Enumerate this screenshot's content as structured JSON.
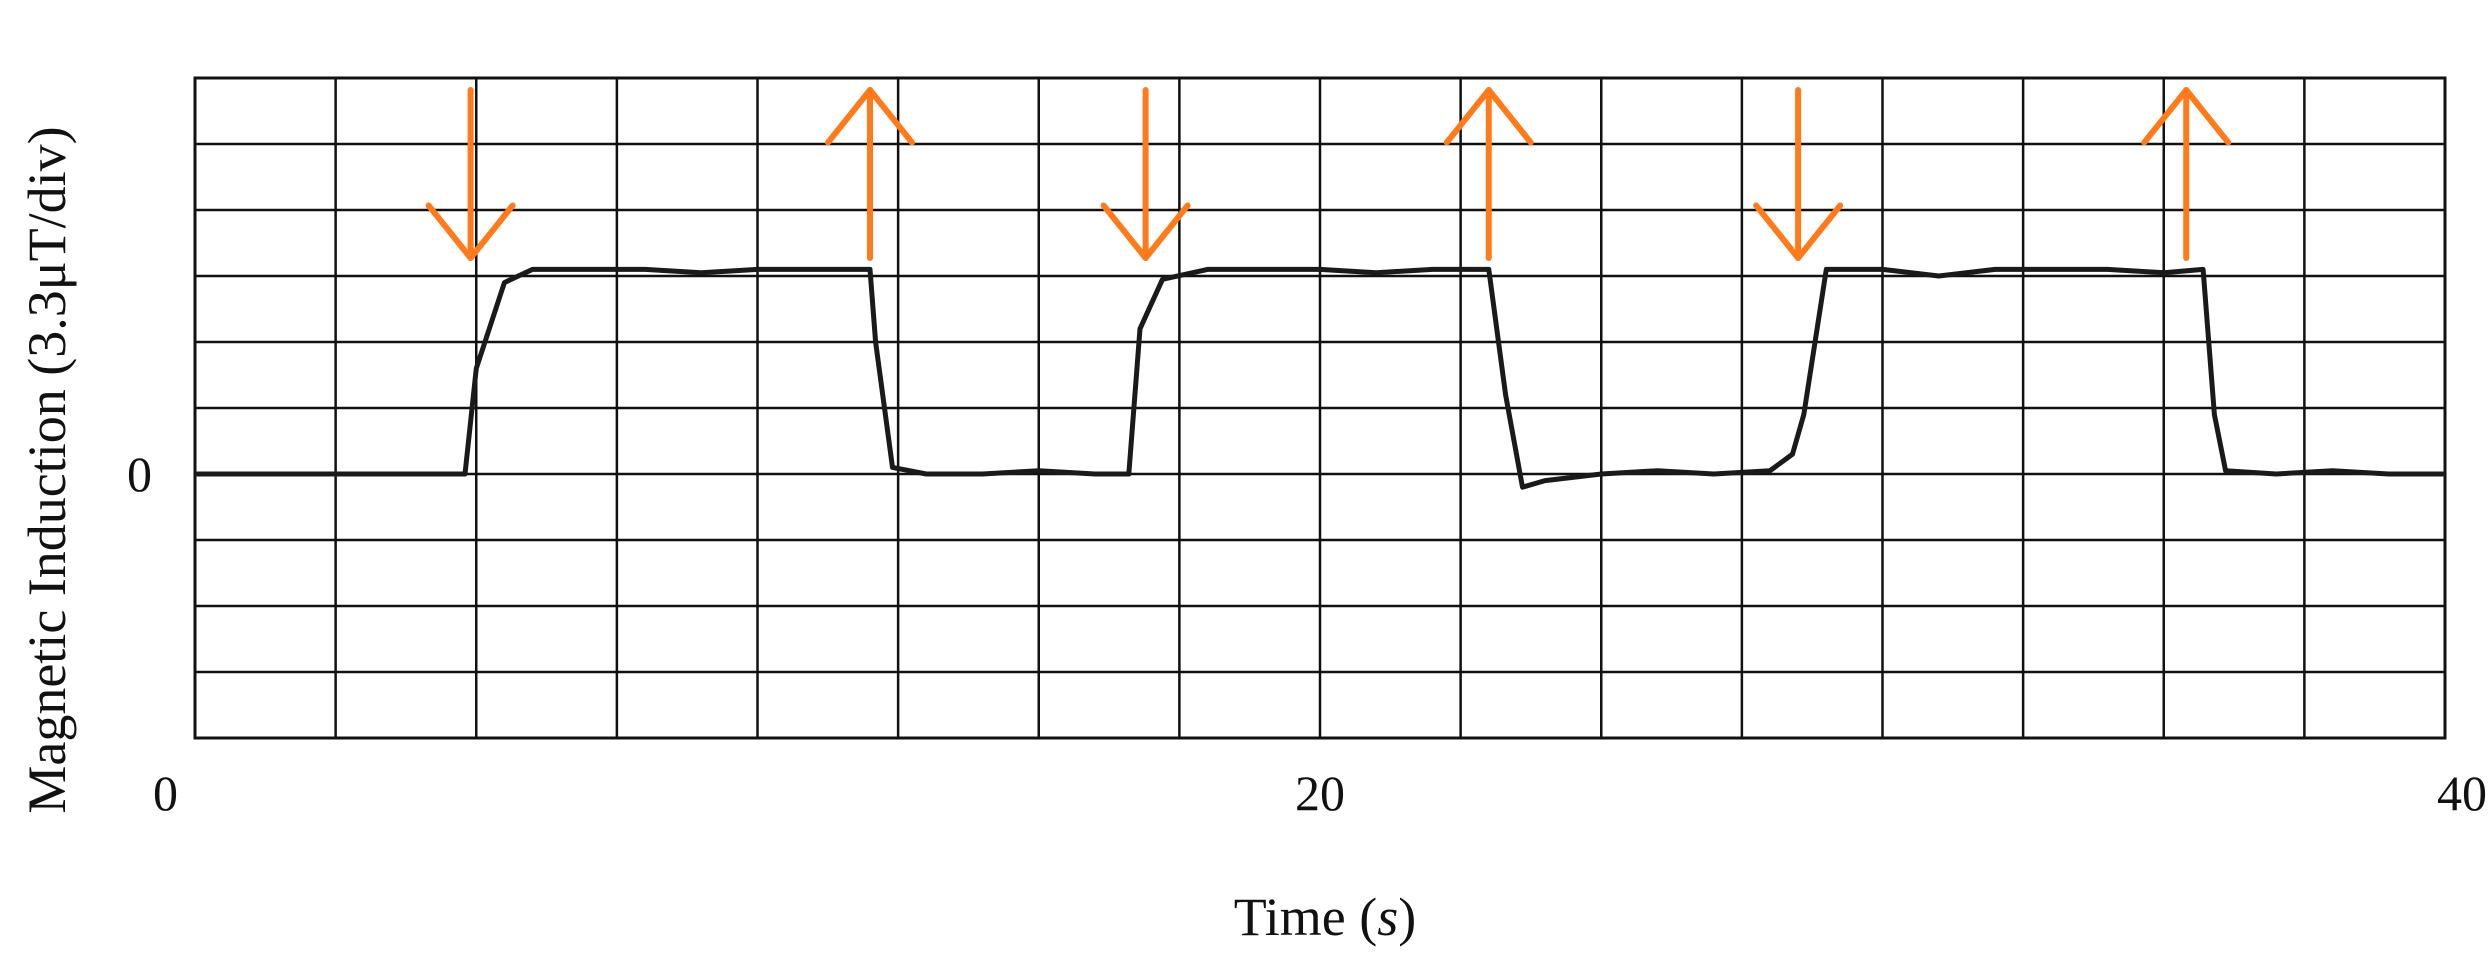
{
  "chart_data": {
    "type": "line",
    "xlabel": "Time (s)",
    "xlabel_parts": {
      "prefix": "Time (",
      "unit": "s",
      "suffix": ")"
    },
    "ylabel": "Magnetic Induction (3.3μT/div)",
    "xlim": [
      0,
      40
    ],
    "x_ticks": [
      0,
      20,
      40
    ],
    "x_tick_labels": [
      "0",
      "20",
      "40"
    ],
    "y_divisions": 10,
    "y_range_div": [
      -4,
      6
    ],
    "y_zero_label": "0",
    "grid": true,
    "line_color": "#1a1a1a",
    "arrow_color": "#ff7a1a",
    "series": [
      {
        "x": [
          0,
          4,
          4.8,
          5.0,
          5.5,
          6,
          7,
          8,
          9,
          10,
          11,
          12,
          12.1,
          12.4,
          13,
          14,
          15,
          16,
          16.6,
          16.8,
          17.2,
          18,
          19,
          20,
          21,
          22,
          23,
          23.3,
          23.6,
          24,
          25,
          26,
          27,
          28,
          28.4,
          28.6,
          29,
          30,
          31,
          32,
          33,
          34,
          35,
          35.7,
          35.9,
          36.1,
          37,
          38,
          39,
          40
        ],
        "y": [
          0,
          0,
          0,
          1.6,
          2.9,
          3.1,
          3.1,
          3.1,
          3.05,
          3.1,
          3.1,
          3.1,
          2.0,
          0.1,
          0,
          0,
          0.05,
          0,
          0,
          2.2,
          2.95,
          3.1,
          3.1,
          3.1,
          3.05,
          3.1,
          3.1,
          1.2,
          -0.2,
          -0.1,
          0,
          0.05,
          0,
          0.05,
          0.3,
          0.9,
          3.1,
          3.1,
          3.0,
          3.1,
          3.1,
          3.1,
          3.05,
          3.1,
          0.9,
          0.05,
          0,
          0.05,
          0,
          0
        ]
      }
    ],
    "annotations": [
      {
        "type": "arrow",
        "direction": "down",
        "x": 4.9
      },
      {
        "type": "arrow",
        "direction": "up",
        "x": 12.0
      },
      {
        "type": "arrow",
        "direction": "down",
        "x": 16.9
      },
      {
        "type": "arrow",
        "direction": "up",
        "x": 23.0
      },
      {
        "type": "arrow",
        "direction": "down",
        "x": 28.5
      },
      {
        "type": "arrow",
        "direction": "up",
        "x": 35.4
      }
    ]
  }
}
